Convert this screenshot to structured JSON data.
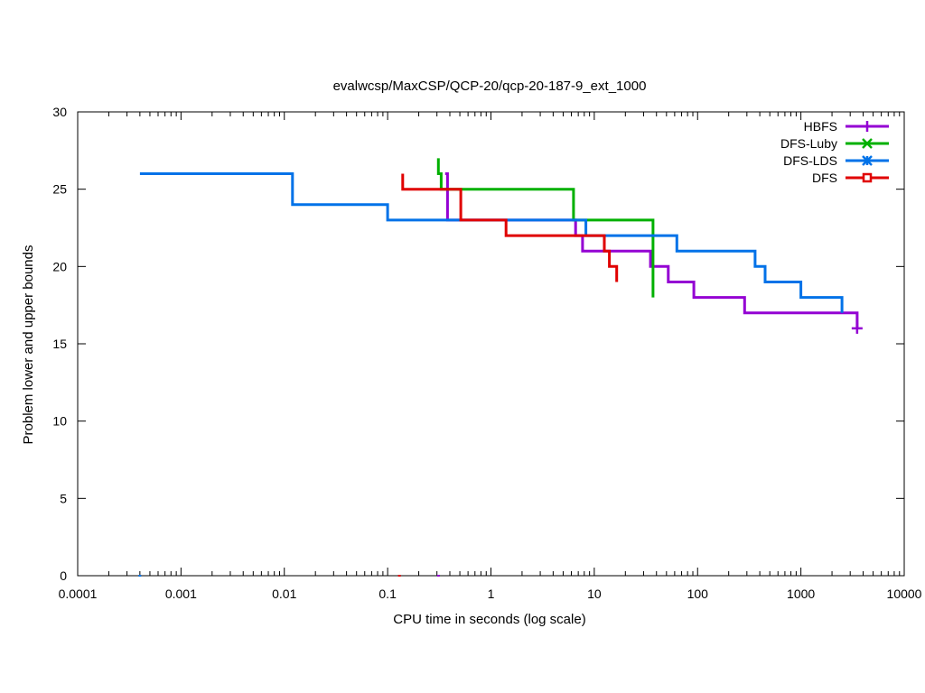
{
  "chart_data": {
    "type": "line",
    "title": "evalwcsp/MaxCSP/QCP-20/qcp-20-187-9_ext_1000",
    "xlabel": "CPU time in seconds (log scale)",
    "ylabel": "Problem lower and upper bounds",
    "x_scale": "log",
    "xlim": [
      0.0001,
      10000
    ],
    "ylim": [
      0,
      30
    ],
    "x_ticks": [
      0.0001,
      0.001,
      0.01,
      0.1,
      1,
      10,
      100,
      1000,
      10000
    ],
    "x_tick_labels": [
      "0.0001",
      "0.001",
      "0.01",
      "0.1",
      "1",
      "10",
      "100",
      "1000",
      "10000"
    ],
    "y_ticks": [
      0,
      5,
      10,
      15,
      20,
      25,
      30
    ],
    "y_tick_labels": [
      "0",
      "5",
      "10",
      "15",
      "20",
      "25",
      "30"
    ],
    "legend_position": "top-right",
    "grid": false,
    "series": [
      {
        "name": "HBFS",
        "color": "#9400d3",
        "marker": "plus",
        "points": [
          [
            0.36,
            26
          ],
          [
            0.38,
            26
          ],
          [
            0.38,
            23.5
          ],
          [
            0.38,
            23
          ],
          [
            6.6,
            23
          ],
          [
            6.6,
            22
          ],
          [
            7.7,
            22
          ],
          [
            7.7,
            21
          ],
          [
            35,
            21
          ],
          [
            35,
            20
          ],
          [
            52,
            20
          ],
          [
            52,
            19
          ],
          [
            92,
            19
          ],
          [
            92,
            18
          ],
          [
            285,
            18
          ],
          [
            285,
            17
          ],
          [
            3500,
            17
          ],
          [
            3500,
            16
          ]
        ],
        "end_marker": [
          3500,
          16
        ],
        "lower_bound_marker": [
          0.31,
          0
        ]
      },
      {
        "name": "DFS-Luby",
        "color": "#00b000",
        "marker": "x",
        "points": [
          [
            0.31,
            27
          ],
          [
            0.31,
            26
          ],
          [
            0.33,
            26
          ],
          [
            0.33,
            25
          ],
          [
            6.3,
            25
          ],
          [
            6.3,
            23
          ],
          [
            37,
            23
          ],
          [
            37,
            18
          ]
        ]
      },
      {
        "name": "DFS-LDS",
        "color": "#0072e8",
        "marker": "asterisk",
        "points": [
          [
            0.0004,
            26
          ],
          [
            0.012,
            26
          ],
          [
            0.012,
            24
          ],
          [
            0.1,
            24
          ],
          [
            0.1,
            23
          ],
          [
            8.3,
            23
          ],
          [
            8.3,
            22
          ],
          [
            63,
            22
          ],
          [
            63,
            21
          ],
          [
            360,
            21
          ],
          [
            360,
            20
          ],
          [
            450,
            20
          ],
          [
            450,
            19
          ],
          [
            1000,
            19
          ],
          [
            1000,
            18
          ],
          [
            2500,
            18
          ],
          [
            2500,
            17
          ]
        ],
        "lower_bound_marker": [
          0.0004,
          0
        ]
      },
      {
        "name": "DFS",
        "color": "#e00000",
        "marker": "square",
        "points": [
          [
            0.14,
            26
          ],
          [
            0.14,
            25
          ],
          [
            0.51,
            25
          ],
          [
            0.51,
            23
          ],
          [
            1.4,
            23
          ],
          [
            1.4,
            22
          ],
          [
            12.5,
            22
          ],
          [
            12.5,
            21
          ],
          [
            14,
            21
          ],
          [
            14,
            20
          ],
          [
            16.5,
            20
          ],
          [
            16.5,
            19
          ]
        ],
        "lower_bound_marker": [
          0.13,
          0
        ]
      }
    ]
  }
}
